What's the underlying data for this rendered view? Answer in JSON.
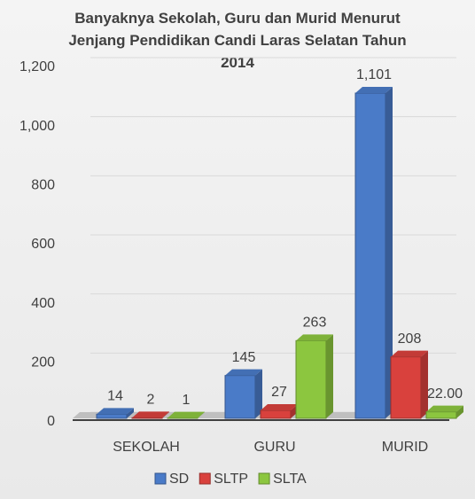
{
  "chart_data": {
    "type": "bar3d",
    "title": "Banyaknya Sekolah, Guru dan Murid Menurut Jenjang Pendidikan  Candi Laras Selatan Tahun 2014",
    "categories": [
      "SEKOLAH",
      "GURU",
      "MURID"
    ],
    "series": [
      {
        "name": "SD",
        "color": "#4a7bc8",
        "values": [
          14,
          145,
          1101
        ],
        "value_labels": [
          "14",
          "145",
          "1,101"
        ]
      },
      {
        "name": "SLTP",
        "color": "#d9413d",
        "values": [
          2,
          27,
          208
        ],
        "value_labels": [
          "2",
          "27",
          "208"
        ]
      },
      {
        "name": "SLTA",
        "color": "#8cc63f",
        "values": [
          1,
          263,
          22
        ],
        "value_labels": [
          "1",
          "263",
          "22.00"
        ]
      }
    ],
    "ylim": [
      0,
      1200
    ],
    "yticks": [
      0,
      200,
      400,
      600,
      800,
      {
        "value": 1000,
        "label": "1,000"
      },
      {
        "value": 1200,
        "label": "1,200"
      }
    ],
    "grid": true,
    "legend": "bottom"
  }
}
